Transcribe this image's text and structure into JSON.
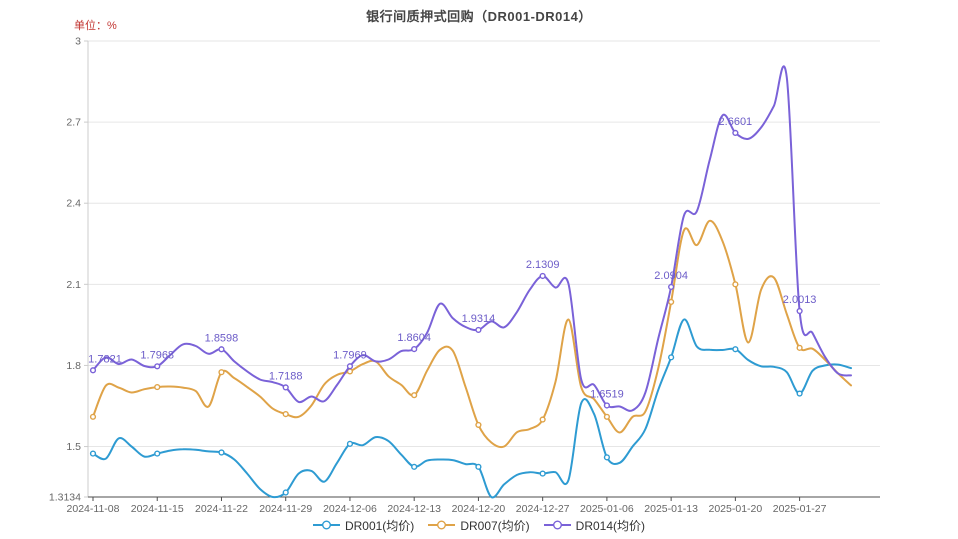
{
  "title": "银行间质押式回购（DR001-DR014）",
  "unit_label": "单位：%",
  "chart_data": {
    "type": "line",
    "title": "银行间质押式回购（DR001-DR014）",
    "ylabel": "单位：%",
    "grid": true,
    "smooth": true,
    "legend_position": "bottom",
    "y_axis": {
      "min": 1.3134,
      "max": 3,
      "ticks": [
        {
          "value": 3,
          "label": "3"
        },
        {
          "value": 2.7,
          "label": "2.7"
        },
        {
          "value": 2.4,
          "label": "2.4"
        },
        {
          "value": 2.1,
          "label": "2.1"
        },
        {
          "value": 1.8,
          "label": "1.8"
        },
        {
          "value": 1.5,
          "label": "1.5"
        },
        {
          "value": 1.3134,
          "label": "1.3134"
        }
      ]
    },
    "x_tick_labels": [
      "2024-11-08",
      "2024-11-15",
      "2024-11-22",
      "2024-11-29",
      "2024-12-06",
      "2024-12-13",
      "2024-12-20",
      "2024-12-27",
      "2025-01-06",
      "2025-01-13",
      "2025-01-20",
      "2025-01-27"
    ],
    "points_per_tick": 5,
    "marker_every": 5,
    "annotation_color": "#6c5cc8",
    "grid_color": "#e6e6e6",
    "axis_line_color": "#4d4d4d",
    "y_axis_line_color": "#cccccc",
    "axis_label_color": "#666666",
    "series": [
      {
        "name": "DR001(均价)",
        "color": "#2e9bd2",
        "values": [
          1.474,
          1.455,
          1.53,
          1.5,
          1.463,
          1.474,
          1.485,
          1.49,
          1.488,
          1.482,
          1.478,
          1.452,
          1.4,
          1.343,
          1.3134,
          1.33,
          1.4,
          1.41,
          1.37,
          1.44,
          1.51,
          1.505,
          1.535,
          1.52,
          1.47,
          1.425,
          1.448,
          1.452,
          1.45,
          1.435,
          1.425,
          1.3134,
          1.36,
          1.395,
          1.405,
          1.4,
          1.405,
          1.375,
          1.66,
          1.62,
          1.46,
          1.44,
          1.5,
          1.565,
          1.71,
          1.83,
          1.97,
          1.87,
          1.858,
          1.857,
          1.86,
          1.82,
          1.797,
          1.795,
          1.775,
          1.696,
          1.78,
          1.8,
          1.803,
          1.79
        ]
      },
      {
        "name": "DR007(均价)",
        "color": "#dfa348",
        "values": [
          1.61,
          1.725,
          1.718,
          1.7,
          1.712,
          1.72,
          1.722,
          1.718,
          1.705,
          1.648,
          1.775,
          1.753,
          1.72,
          1.685,
          1.64,
          1.62,
          1.61,
          1.652,
          1.73,
          1.765,
          1.778,
          1.805,
          1.815,
          1.76,
          1.728,
          1.69,
          1.78,
          1.858,
          1.855,
          1.72,
          1.58,
          1.515,
          1.5,
          1.553,
          1.565,
          1.6,
          1.74,
          1.97,
          1.72,
          1.675,
          1.61,
          1.552,
          1.61,
          1.63,
          1.79,
          2.035,
          2.3,
          2.245,
          2.335,
          2.26,
          2.1,
          1.885,
          2.08,
          2.125,
          1.99,
          1.865,
          1.862,
          1.82,
          1.77,
          1.726
        ]
      },
      {
        "name": "DR014(均价)",
        "color": "#7a62d8",
        "values": [
          1.7821,
          1.83,
          1.805,
          1.822,
          1.798,
          1.7968,
          1.838,
          1.878,
          1.872,
          1.843,
          1.8598,
          1.815,
          1.778,
          1.748,
          1.738,
          1.7188,
          1.665,
          1.685,
          1.668,
          1.728,
          1.7969,
          1.838,
          1.815,
          1.822,
          1.853,
          1.8604,
          1.92,
          2.028,
          1.975,
          1.942,
          1.9314,
          1.963,
          1.941,
          1.998,
          2.08,
          2.1309,
          2.088,
          2.103,
          1.748,
          1.728,
          1.6519,
          1.648,
          1.634,
          1.7,
          1.9,
          2.0904,
          2.355,
          2.37,
          2.56,
          2.725,
          2.6601,
          2.638,
          2.68,
          2.76,
          2.865,
          2.0013,
          1.92,
          1.83,
          1.77,
          1.763
        ]
      }
    ],
    "annotations": [
      {
        "series": "DR014(均价)",
        "index": 0,
        "text": "1.7821"
      },
      {
        "series": "DR014(均价)",
        "index": 5,
        "text": "1.7968"
      },
      {
        "series": "DR014(均价)",
        "index": 10,
        "text": "1.8598"
      },
      {
        "series": "DR014(均价)",
        "index": 15,
        "text": "1.7188"
      },
      {
        "series": "DR014(均价)",
        "index": 20,
        "text": "1.7969"
      },
      {
        "series": "DR014(均价)",
        "index": 25,
        "text": "1.8604"
      },
      {
        "series": "DR014(均价)",
        "index": 30,
        "text": "1.9314"
      },
      {
        "series": "DR014(均价)",
        "index": 35,
        "text": "2.1309"
      },
      {
        "series": "DR014(均价)",
        "index": 40,
        "text": "1.6519"
      },
      {
        "series": "DR014(均价)",
        "index": 45,
        "text": "2.0904"
      },
      {
        "series": "DR014(均价)",
        "index": 50,
        "text": "2.6601"
      },
      {
        "series": "DR014(均价)",
        "index": 55,
        "text": "2.0013"
      }
    ]
  },
  "legend": {
    "items": [
      {
        "label": "DR001(均价)",
        "color": "#2e9bd2"
      },
      {
        "label": "DR007(均价)",
        "color": "#dfa348"
      },
      {
        "label": "DR014(均价)",
        "color": "#7a62d8"
      }
    ]
  }
}
